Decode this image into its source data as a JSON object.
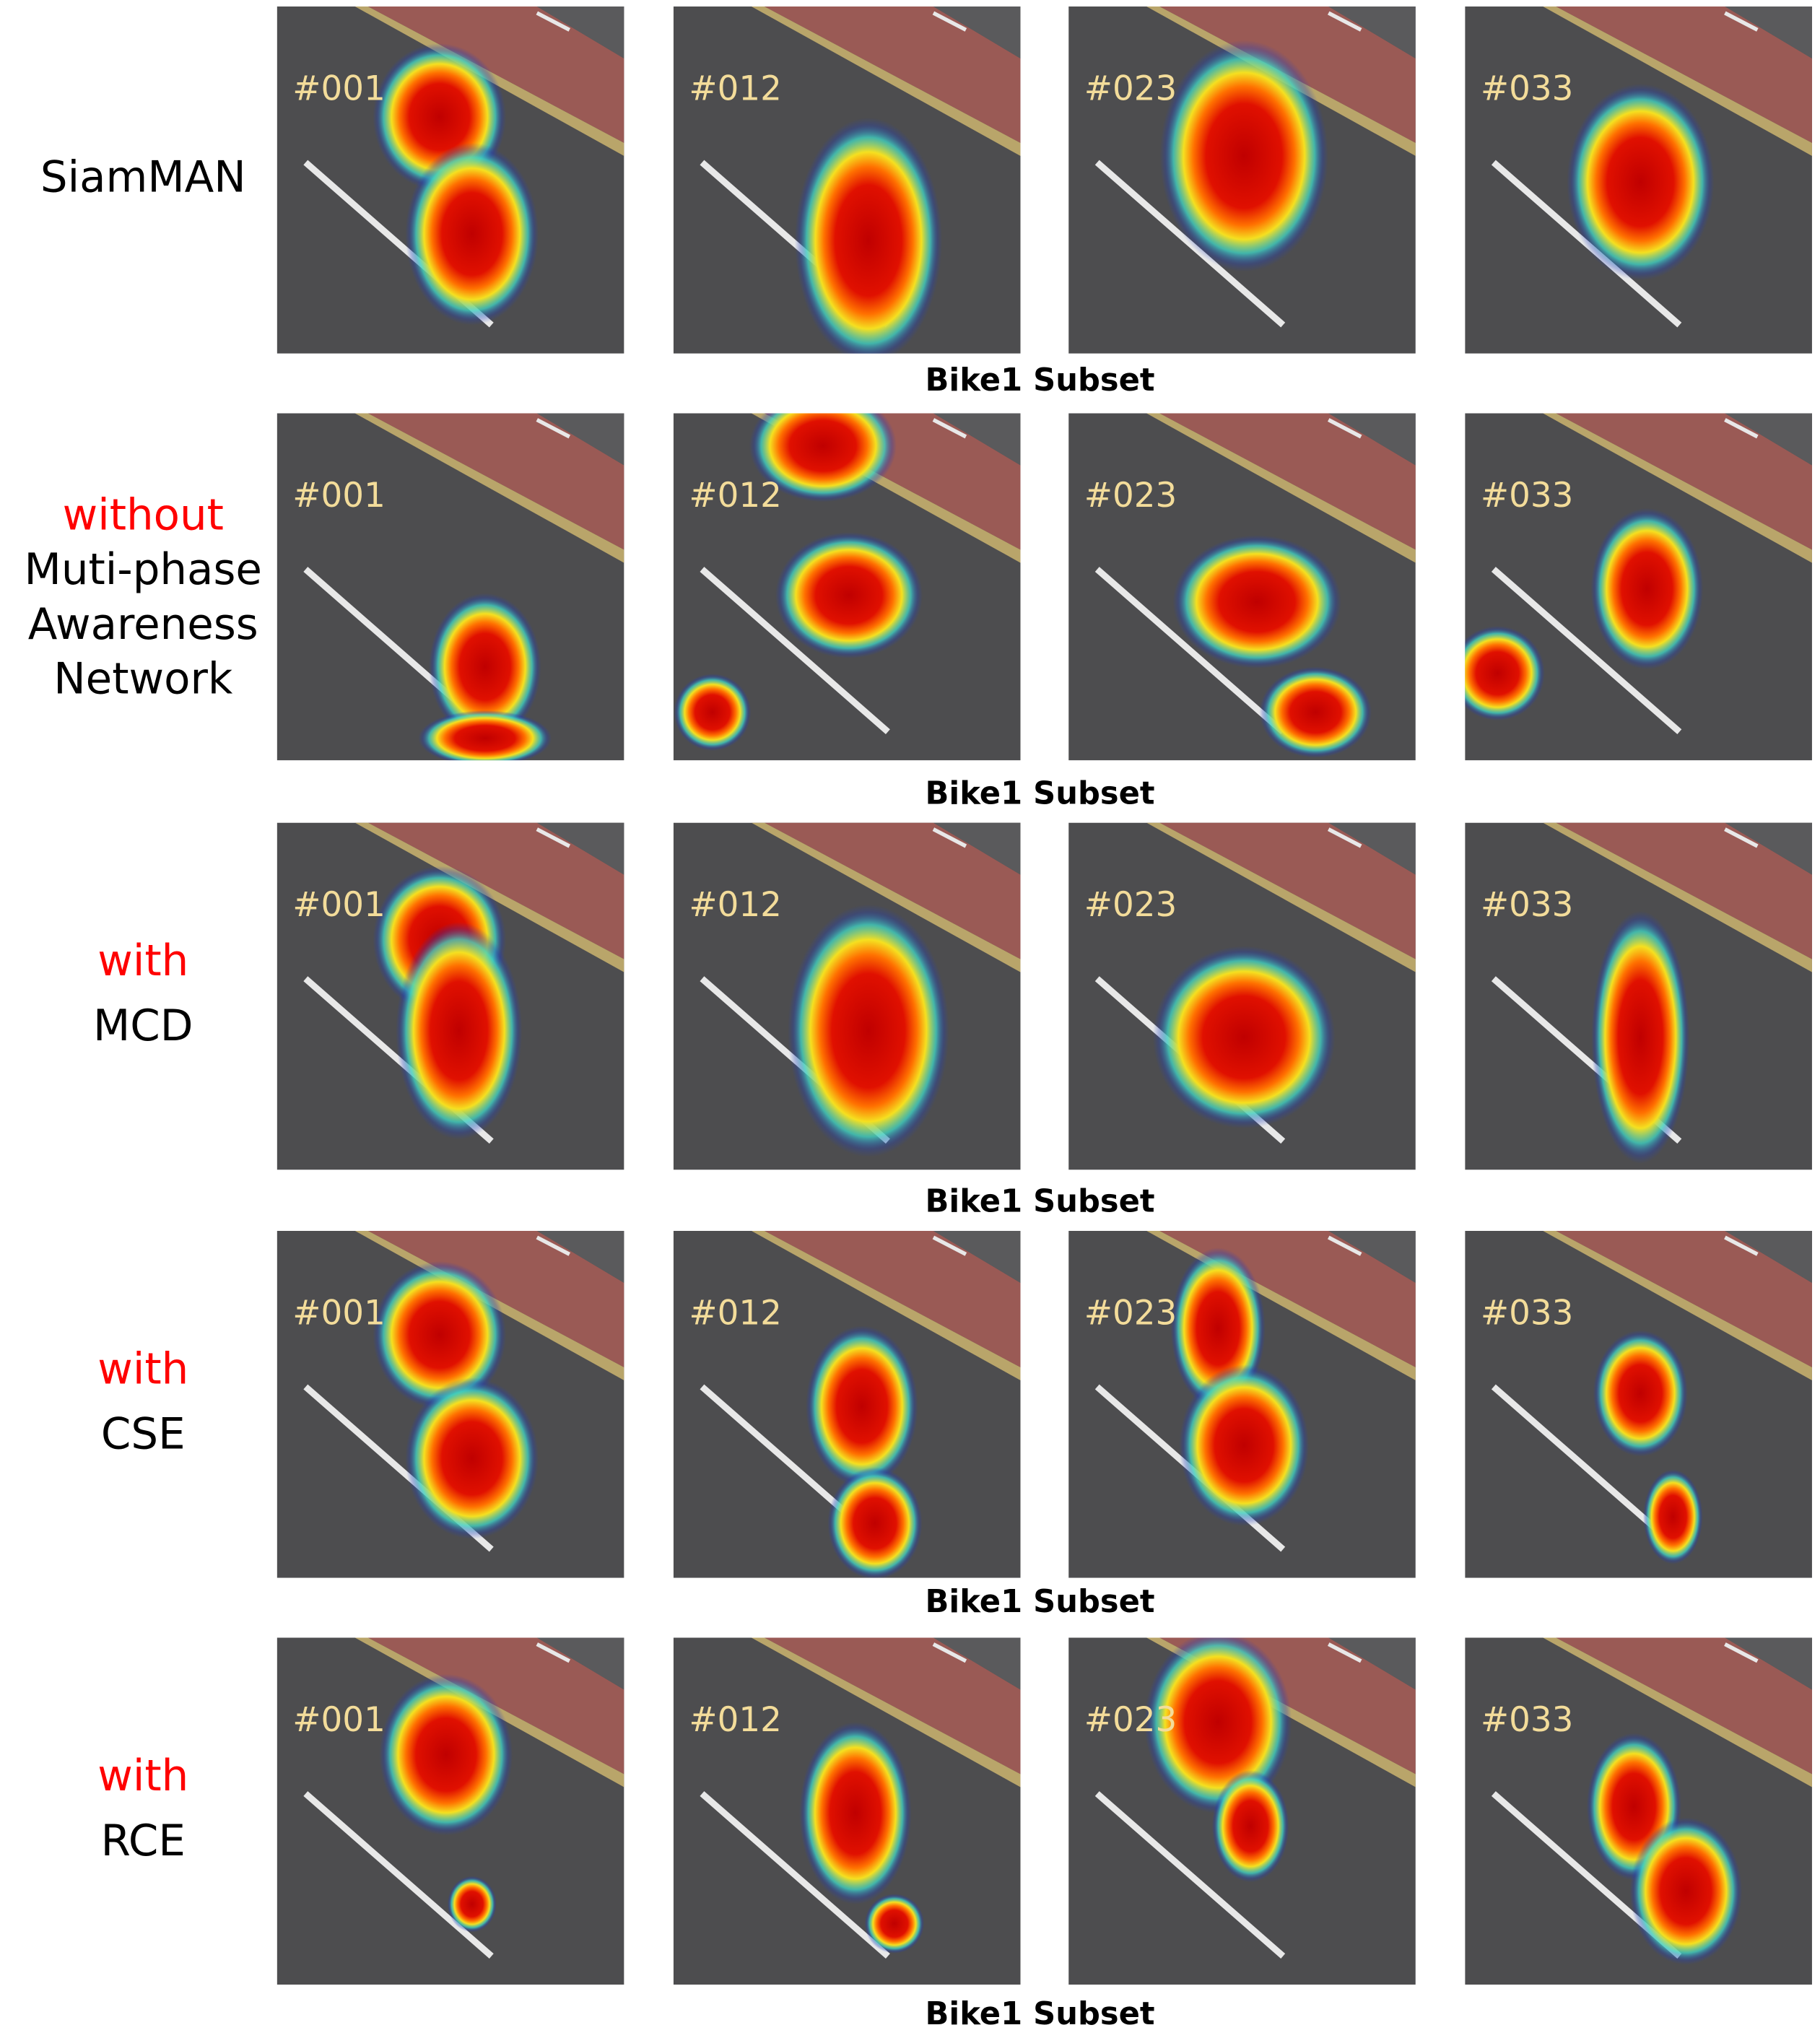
{
  "rows": [
    {
      "label_lines": [
        {
          "text": "SiamMAN",
          "color": "#000000"
        }
      ],
      "frames": [
        "#001",
        "#012",
        "#023",
        "#033"
      ],
      "caption": "Bike1 Subset"
    },
    {
      "label_lines": [
        {
          "text": "without",
          "color": "#ff0000"
        },
        {
          "text": "Muti-phase",
          "color": "#000000"
        },
        {
          "text": "Awareness",
          "color": "#000000"
        },
        {
          "text": "Network",
          "color": "#000000"
        }
      ],
      "frames": [
        "#001",
        "#012",
        "#023",
        "#033"
      ],
      "caption": "Bike1 Subset"
    },
    {
      "label_lines": [
        {
          "text": "with",
          "color": "#ff0000"
        },
        {
          "text": "MCD",
          "color": "#000000"
        }
      ],
      "frames": [
        "#001",
        "#012",
        "#023",
        "#033"
      ],
      "caption": "Bike1 Subset"
    },
    {
      "label_lines": [
        {
          "text": "with",
          "color": "#ff0000"
        },
        {
          "text": "CSE",
          "color": "#000000"
        }
      ],
      "frames": [
        "#001",
        "#012",
        "#023",
        "#033"
      ],
      "caption": "Bike1 Subset"
    },
    {
      "label_lines": [
        {
          "text": "with",
          "color": "#ff0000"
        },
        {
          "text": "RCE",
          "color": "#000000"
        }
      ],
      "frames": [
        "#001",
        "#012",
        "#023",
        "#033"
      ],
      "caption": "Bike1 Subset"
    }
  ]
}
